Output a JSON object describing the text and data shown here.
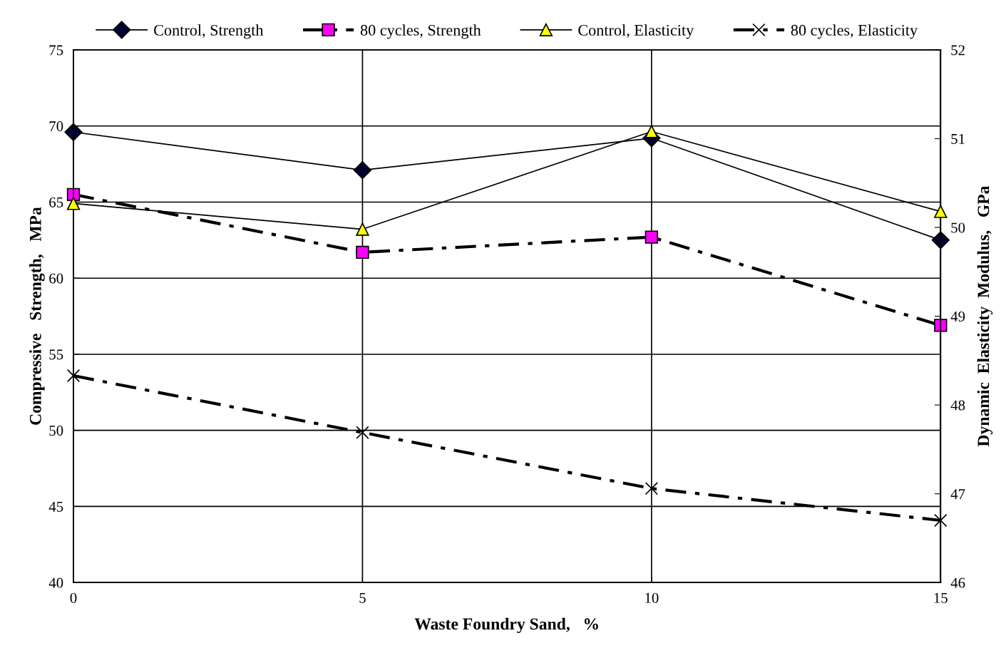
{
  "chart_data": {
    "type": "line",
    "xlabel": "Waste Foundry Sand,   %",
    "ylabel": "Compressive   Strength,   MPa",
    "y2label": "Dynamic  Elasticity  Modulus,   GPa",
    "x": [
      0,
      5,
      10,
      15
    ],
    "xlim": [
      0,
      15
    ],
    "xticks": [
      0,
      5,
      10,
      15
    ],
    "ylim": [
      40,
      75
    ],
    "yticks": [
      40,
      45,
      50,
      55,
      60,
      65,
      70,
      75
    ],
    "y2lim": [
      46,
      52
    ],
    "y2ticks": [
      46,
      47,
      48,
      49,
      50,
      51,
      52
    ],
    "grid": true,
    "legend": "top",
    "series": [
      {
        "name": "Control, Strength",
        "color": "#000033",
        "marker": "diamond",
        "line_style": "solid",
        "values": [
          69.6,
          67.1,
          69.2,
          62.5
        ]
      },
      {
        "name": "80 cycles, Strength",
        "color": "#ff00ff",
        "marker": "square",
        "line_style": "dashdot",
        "values": [
          65.5,
          61.7,
          62.7,
          56.9
        ]
      },
      {
        "name": "Control, Elasticity",
        "color": "#ffff00",
        "marker": "triangle",
        "line_style": "solid",
        "axis": "y2",
        "values": [
          50.27,
          49.98,
          51.08,
          50.18
        ]
      },
      {
        "name": "80 cycles, Elasticity",
        "color": "#000000",
        "marker": "cross",
        "line_style": "dashdot",
        "axis": "y2",
        "values": [
          48.33,
          47.69,
          47.06,
          46.7
        ]
      }
    ]
  }
}
